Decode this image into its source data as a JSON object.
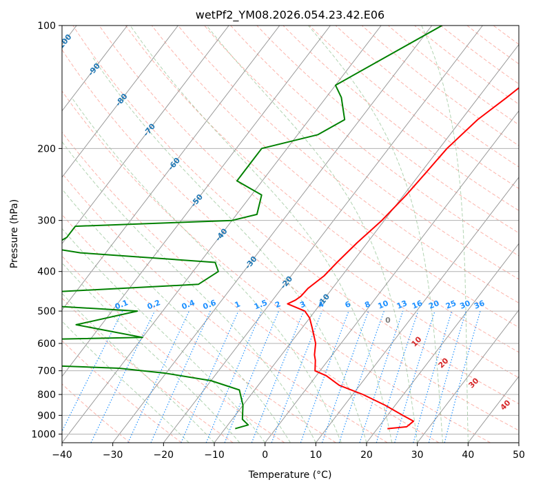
{
  "chart_data": {
    "type": "line",
    "title": "wetPf2_YM08.2026.054.23.42.E06",
    "xlabel": "Temperature (°C)",
    "ylabel": "Pressure (hPa)",
    "xlim": [
      -40,
      50
    ],
    "ylim": [
      1050,
      100
    ],
    "y_scale": "log",
    "x_ticks": [
      "−40",
      "−30",
      "−20",
      "−10",
      "0",
      "10",
      "20",
      "30",
      "40",
      "50"
    ],
    "y_ticks": [
      "100",
      "200",
      "300",
      "400",
      "500",
      "600",
      "700",
      "800",
      "900",
      "1000"
    ],
    "grid": true,
    "colors": {
      "temperature": "#ff0000",
      "dewpoint": "#008000",
      "isotherm": "#999999",
      "dry_adiabat": "#fa8072",
      "moist_adiabat": "#90c090",
      "mixing_ratio": "#1e90ff",
      "isotherm_label": "#1f77b4",
      "moist_label": "#d62728"
    },
    "series": [
      {
        "role": "temperature",
        "points": [
          [
            -5,
            100
          ],
          [
            -5.2,
            120
          ],
          [
            -3.2,
            140
          ],
          [
            -4.4,
            150
          ],
          [
            -6.8,
            170
          ],
          [
            -8.5,
            200
          ],
          [
            -9,
            230
          ],
          [
            -9.5,
            260
          ],
          [
            -10.5,
            300
          ],
          [
            -12,
            340
          ],
          [
            -13,
            380
          ],
          [
            -13.5,
            410
          ],
          [
            -14.8,
            440
          ],
          [
            -15,
            460
          ],
          [
            -15.5,
            470
          ],
          [
            -16.5,
            480
          ],
          [
            -12,
            500
          ],
          [
            -10,
            520
          ],
          [
            -8,
            550
          ],
          [
            -5,
            600
          ],
          [
            -3.5,
            640
          ],
          [
            -2.5,
            660
          ],
          [
            -1,
            700
          ],
          [
            2,
            720
          ],
          [
            6,
            760
          ],
          [
            12,
            800
          ],
          [
            18,
            850
          ],
          [
            23,
            900
          ],
          [
            26,
            930
          ],
          [
            25.5,
            960
          ],
          [
            22,
            970
          ]
        ]
      },
      {
        "role": "dewpoint",
        "points": [
          [
            -28,
            100
          ],
          [
            -40,
            140
          ],
          [
            -37,
            150
          ],
          [
            -33,
            170
          ],
          [
            -36,
            185
          ],
          [
            -45,
            200
          ],
          [
            -45,
            220
          ],
          [
            -45,
            240
          ],
          [
            -38,
            260
          ],
          [
            -36,
            290
          ],
          [
            -40,
            300
          ],
          [
            -70,
            310
          ],
          [
            -70,
            330
          ],
          [
            -72,
            350
          ],
          [
            -65,
            360
          ],
          [
            -37,
            380
          ],
          [
            -35,
            400
          ],
          [
            -37,
            430
          ],
          [
            -80,
            460
          ],
          [
            -80,
            470
          ],
          [
            -70,
            480
          ],
          [
            -45,
            500
          ],
          [
            -55,
            540
          ],
          [
            -40,
            580
          ],
          [
            -100,
            600
          ],
          [
            -100,
            635
          ],
          [
            -70,
            650
          ],
          [
            -68,
            670
          ],
          [
            -40,
            690
          ],
          [
            -30,
            710
          ],
          [
            -20,
            740
          ],
          [
            -13,
            780
          ],
          [
            -10,
            850
          ],
          [
            -8,
            920
          ],
          [
            -6,
            950
          ],
          [
            -8,
            970
          ]
        ]
      }
    ],
    "isotherm_labels": [
      "-100",
      "-90",
      "-80",
      "-70",
      "-60",
      "-50",
      "-40",
      "-30",
      "-20",
      "-10"
    ],
    "mixing_ratio_labels": [
      "0.1",
      "0.2",
      "0.4",
      "0.6",
      "1",
      "1.5",
      "2",
      "3",
      "4",
      "6",
      "8",
      "10",
      "13",
      "16",
      "20",
      "25",
      "30",
      "36"
    ],
    "moist_adiabat_labels": [
      "10",
      "20",
      "30",
      "40"
    ],
    "zero_label": "0"
  }
}
